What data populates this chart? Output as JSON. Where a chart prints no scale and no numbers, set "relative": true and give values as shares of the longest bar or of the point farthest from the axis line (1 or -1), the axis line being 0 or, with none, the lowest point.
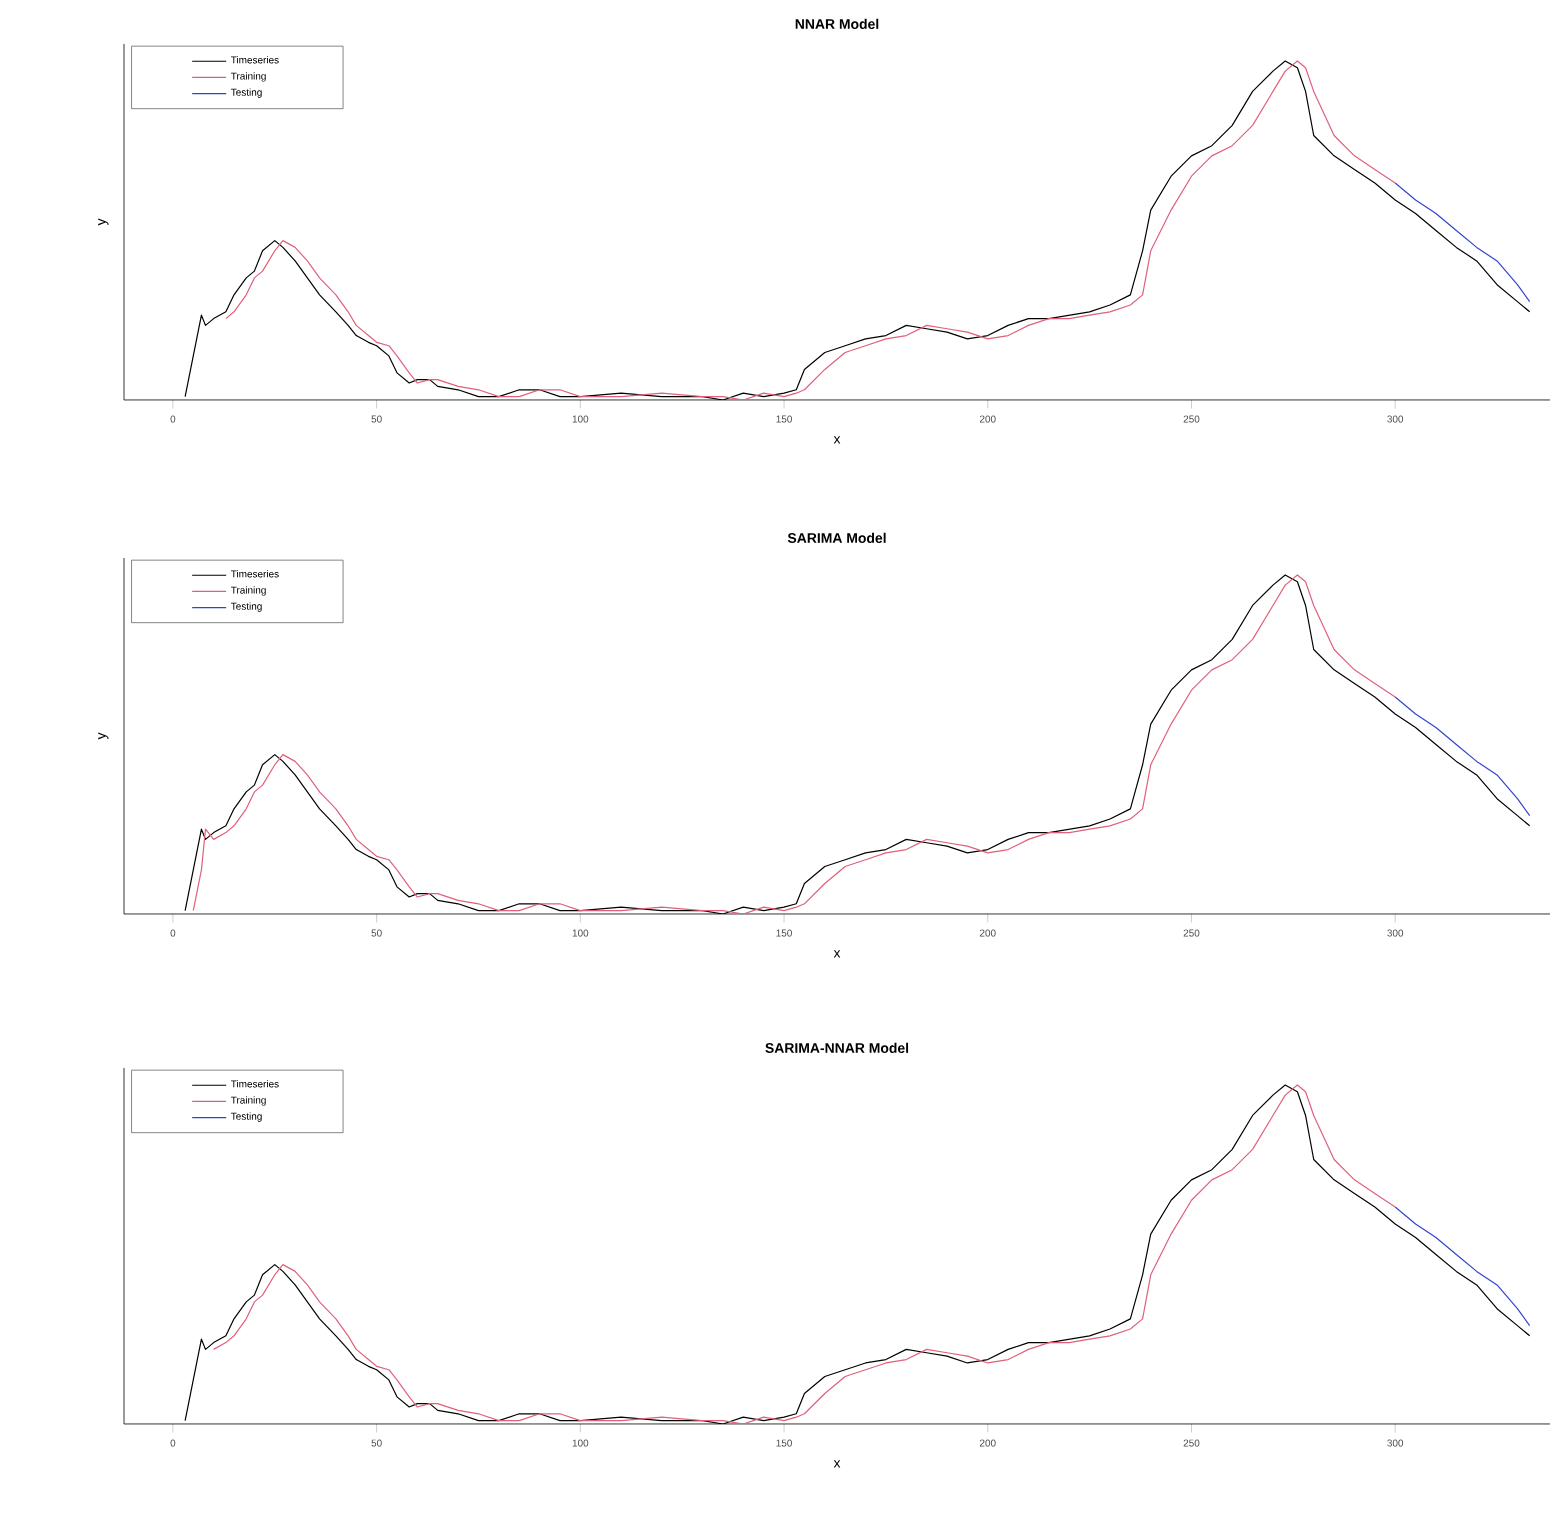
{
  "chart_data": [
    {
      "type": "line",
      "title": "NNAR Model",
      "xlabel": "x",
      "ylabel": "y",
      "relative": true,
      "xlim": [
        -12,
        338
      ],
      "xticks": [
        0,
        50,
        100,
        150,
        200,
        250,
        300
      ],
      "legend": "top left",
      "series": [
        {
          "name": "Timeseries",
          "color": "#000000",
          "x": [
            3,
            5,
            7,
            8,
            10,
            13,
            15,
            18,
            20,
            22,
            25,
            27,
            30,
            33,
            36,
            40,
            43,
            45,
            48,
            50,
            53,
            55,
            58,
            60,
            63,
            65,
            70,
            75,
            80,
            85,
            90,
            95,
            100,
            110,
            120,
            130,
            135,
            140,
            145,
            150,
            153,
            155,
            160,
            165,
            170,
            175,
            180,
            185,
            190,
            195,
            200,
            205,
            210,
            215,
            220,
            225,
            230,
            235,
            238,
            240,
            245,
            250,
            255,
            260,
            265,
            270,
            273,
            276,
            278,
            280,
            285,
            290,
            295,
            300,
            305,
            310,
            315,
            320,
            325,
            330,
            333
          ],
          "values": [
            0.01,
            0.13,
            0.25,
            0.22,
            0.24,
            0.26,
            0.31,
            0.36,
            0.38,
            0.44,
            0.47,
            0.45,
            0.41,
            0.36,
            0.31,
            0.26,
            0.22,
            0.19,
            0.17,
            0.16,
            0.13,
            0.08,
            0.05,
            0.06,
            0.06,
            0.04,
            0.03,
            0.01,
            0.01,
            0.03,
            0.03,
            0.01,
            0.01,
            0.02,
            0.01,
            0.01,
            0,
            0.02,
            0.01,
            0.02,
            0.03,
            0.09,
            0.14,
            0.16,
            0.18,
            0.19,
            0.22,
            0.21,
            0.2,
            0.18,
            0.19,
            0.22,
            0.24,
            0.24,
            0.25,
            0.26,
            0.28,
            0.31,
            0.44,
            0.56,
            0.66,
            0.72,
            0.75,
            0.81,
            0.91,
            0.97,
            1,
            0.98,
            0.91,
            0.78,
            0.72,
            0.68,
            0.64,
            0.59,
            0.55,
            0.5,
            0.45,
            0.41,
            0.34,
            0.29,
            0.26
          ]
        },
        {
          "name": "Training",
          "color": "#e0607a",
          "x": [
            13,
            15,
            18,
            20,
            22,
            25,
            27,
            30,
            33,
            36,
            40,
            43,
            45,
            48,
            50,
            53,
            55,
            58,
            60,
            63,
            65,
            70,
            75,
            80,
            85,
            90,
            95,
            100,
            110,
            120,
            130,
            135,
            140,
            145,
            150,
            153,
            155,
            160,
            165,
            170,
            175,
            180,
            185,
            190,
            195,
            200,
            205,
            210,
            215,
            220,
            225,
            230,
            235,
            238,
            240,
            245,
            250,
            255,
            260,
            265,
            270,
            273,
            276,
            278,
            280,
            285,
            290,
            295,
            300
          ],
          "values": [
            0.24,
            0.26,
            0.31,
            0.36,
            0.38,
            0.44,
            0.47,
            0.45,
            0.41,
            0.36,
            0.31,
            0.26,
            0.22,
            0.19,
            0.17,
            0.16,
            0.13,
            0.08,
            0.05,
            0.06,
            0.06,
            0.04,
            0.03,
            0.01,
            0.01,
            0.03,
            0.03,
            0.01,
            0.01,
            0.02,
            0.01,
            0.01,
            0,
            0.02,
            0.01,
            0.02,
            0.03,
            0.09,
            0.14,
            0.16,
            0.18,
            0.19,
            0.22,
            0.21,
            0.2,
            0.18,
            0.19,
            0.22,
            0.24,
            0.24,
            0.25,
            0.26,
            0.28,
            0.31,
            0.44,
            0.56,
            0.66,
            0.72,
            0.75,
            0.81,
            0.91,
            0.97,
            1,
            0.98,
            0.91,
            0.78,
            0.72,
            0.68,
            0.64
          ]
        },
        {
          "name": "Testing",
          "color": "#3344cc",
          "x": [
            300,
            305,
            310,
            315,
            320,
            325,
            330,
            333
          ],
          "values": [
            0.64,
            0.59,
            0.55,
            0.5,
            0.45,
            0.41,
            0.34,
            0.29
          ]
        }
      ]
    },
    {
      "type": "line",
      "title": "SARIMA Model",
      "xlabel": "x",
      "ylabel": "y",
      "relative": true,
      "xlim": [
        -12,
        338
      ],
      "xticks": [
        0,
        50,
        100,
        150,
        200,
        250,
        300
      ],
      "legend": "top left",
      "series": [
        {
          "name": "Timeseries",
          "color": "#000000",
          "x": [
            3,
            5,
            7,
            8,
            10,
            13,
            15,
            18,
            20,
            22,
            25,
            27,
            30,
            33,
            36,
            40,
            43,
            45,
            48,
            50,
            53,
            55,
            58,
            60,
            63,
            65,
            70,
            75,
            80,
            85,
            90,
            95,
            100,
            110,
            120,
            130,
            135,
            140,
            145,
            150,
            153,
            155,
            160,
            165,
            170,
            175,
            180,
            185,
            190,
            195,
            200,
            205,
            210,
            215,
            220,
            225,
            230,
            235,
            238,
            240,
            245,
            250,
            255,
            260,
            265,
            270,
            273,
            276,
            278,
            280,
            285,
            290,
            295,
            300,
            305,
            310,
            315,
            320,
            325,
            330,
            333
          ],
          "values": [
            0.01,
            0.13,
            0.25,
            0.22,
            0.24,
            0.26,
            0.31,
            0.36,
            0.38,
            0.44,
            0.47,
            0.45,
            0.41,
            0.36,
            0.31,
            0.26,
            0.22,
            0.19,
            0.17,
            0.16,
            0.13,
            0.08,
            0.05,
            0.06,
            0.06,
            0.04,
            0.03,
            0.01,
            0.01,
            0.03,
            0.03,
            0.01,
            0.01,
            0.02,
            0.01,
            0.01,
            0,
            0.02,
            0.01,
            0.02,
            0.03,
            0.09,
            0.14,
            0.16,
            0.18,
            0.19,
            0.22,
            0.21,
            0.2,
            0.18,
            0.19,
            0.22,
            0.24,
            0.24,
            0.25,
            0.26,
            0.28,
            0.31,
            0.44,
            0.56,
            0.66,
            0.72,
            0.75,
            0.81,
            0.91,
            0.97,
            1,
            0.98,
            0.91,
            0.78,
            0.72,
            0.68,
            0.64,
            0.59,
            0.55,
            0.5,
            0.45,
            0.41,
            0.34,
            0.29,
            0.26
          ]
        },
        {
          "name": "Training",
          "color": "#e0607a",
          "x": [
            5,
            7,
            8,
            10,
            13,
            15,
            18,
            20,
            22,
            25,
            27,
            30,
            33,
            36,
            40,
            43,
            45,
            48,
            50,
            53,
            55,
            58,
            60,
            63,
            65,
            70,
            75,
            80,
            85,
            90,
            95,
            100,
            110,
            120,
            130,
            135,
            140,
            145,
            150,
            153,
            155,
            160,
            165,
            170,
            175,
            180,
            185,
            190,
            195,
            200,
            205,
            210,
            215,
            220,
            225,
            230,
            235,
            238,
            240,
            245,
            250,
            255,
            260,
            265,
            270,
            273,
            276,
            278,
            280,
            285,
            290,
            295,
            300
          ],
          "values": [
            0.01,
            0.13,
            0.25,
            0.22,
            0.24,
            0.26,
            0.31,
            0.36,
            0.38,
            0.44,
            0.47,
            0.45,
            0.41,
            0.36,
            0.31,
            0.26,
            0.22,
            0.19,
            0.17,
            0.16,
            0.13,
            0.08,
            0.05,
            0.06,
            0.06,
            0.04,
            0.03,
            0.01,
            0.01,
            0.03,
            0.03,
            0.01,
            0.01,
            0.02,
            0.01,
            0.01,
            0,
            0.02,
            0.01,
            0.02,
            0.03,
            0.09,
            0.14,
            0.16,
            0.18,
            0.19,
            0.22,
            0.21,
            0.2,
            0.18,
            0.19,
            0.22,
            0.24,
            0.24,
            0.25,
            0.26,
            0.28,
            0.31,
            0.44,
            0.56,
            0.66,
            0.72,
            0.75,
            0.81,
            0.91,
            0.97,
            1,
            0.98,
            0.91,
            0.78,
            0.72,
            0.68,
            0.64
          ]
        },
        {
          "name": "Testing",
          "color": "#3344cc",
          "x": [
            300,
            305,
            310,
            315,
            320,
            325,
            330,
            333
          ],
          "values": [
            0.64,
            0.59,
            0.55,
            0.5,
            0.45,
            0.41,
            0.34,
            0.29
          ]
        }
      ]
    },
    {
      "type": "line",
      "title": "SARIMA-NNAR Model",
      "xlabel": "x",
      "relative": true,
      "xlim": [
        -12,
        338
      ],
      "xticks": [
        0,
        50,
        100,
        150,
        200,
        250,
        300
      ],
      "legend": "top left",
      "series": [
        {
          "name": "Timeseries",
          "color": "#000000",
          "x": [
            3,
            5,
            7,
            8,
            10,
            13,
            15,
            18,
            20,
            22,
            25,
            27,
            30,
            33,
            36,
            40,
            43,
            45,
            48,
            50,
            53,
            55,
            58,
            60,
            63,
            65,
            70,
            75,
            80,
            85,
            90,
            95,
            100,
            110,
            120,
            130,
            135,
            140,
            145,
            150,
            153,
            155,
            160,
            165,
            170,
            175,
            180,
            185,
            190,
            195,
            200,
            205,
            210,
            215,
            220,
            225,
            230,
            235,
            238,
            240,
            245,
            250,
            255,
            260,
            265,
            270,
            273,
            276,
            278,
            280,
            285,
            290,
            295,
            300,
            305,
            310,
            315,
            320,
            325,
            330,
            333
          ],
          "values": [
            0.01,
            0.13,
            0.25,
            0.22,
            0.24,
            0.26,
            0.31,
            0.36,
            0.38,
            0.44,
            0.47,
            0.45,
            0.41,
            0.36,
            0.31,
            0.26,
            0.22,
            0.19,
            0.17,
            0.16,
            0.13,
            0.08,
            0.05,
            0.06,
            0.06,
            0.04,
            0.03,
            0.01,
            0.01,
            0.03,
            0.03,
            0.01,
            0.01,
            0.02,
            0.01,
            0.01,
            0,
            0.02,
            0.01,
            0.02,
            0.03,
            0.09,
            0.14,
            0.16,
            0.18,
            0.19,
            0.22,
            0.21,
            0.2,
            0.18,
            0.19,
            0.22,
            0.24,
            0.24,
            0.25,
            0.26,
            0.28,
            0.31,
            0.44,
            0.56,
            0.66,
            0.72,
            0.75,
            0.81,
            0.91,
            0.97,
            1,
            0.98,
            0.91,
            0.78,
            0.72,
            0.68,
            0.64,
            0.59,
            0.55,
            0.5,
            0.45,
            0.41,
            0.34,
            0.29,
            0.26
          ]
        },
        {
          "name": "Training",
          "color": "#e0607a",
          "x": [
            10,
            13,
            15,
            18,
            20,
            22,
            25,
            27,
            30,
            33,
            36,
            40,
            43,
            45,
            48,
            50,
            53,
            55,
            58,
            60,
            63,
            65,
            70,
            75,
            80,
            85,
            90,
            95,
            100,
            110,
            120,
            130,
            135,
            140,
            145,
            150,
            153,
            155,
            160,
            165,
            170,
            175,
            180,
            185,
            190,
            195,
            200,
            205,
            210,
            215,
            220,
            225,
            230,
            235,
            238,
            240,
            245,
            250,
            255,
            260,
            265,
            270,
            273,
            276,
            278,
            280,
            285,
            290,
            295,
            300
          ],
          "values": [
            0.22,
            0.24,
            0.26,
            0.31,
            0.36,
            0.38,
            0.44,
            0.47,
            0.45,
            0.41,
            0.36,
            0.31,
            0.26,
            0.22,
            0.19,
            0.17,
            0.16,
            0.13,
            0.08,
            0.05,
            0.06,
            0.06,
            0.04,
            0.03,
            0.01,
            0.01,
            0.03,
            0.03,
            0.01,
            0.01,
            0.02,
            0.01,
            0.01,
            0,
            0.02,
            0.01,
            0.02,
            0.03,
            0.09,
            0.14,
            0.16,
            0.18,
            0.19,
            0.22,
            0.21,
            0.2,
            0.18,
            0.19,
            0.22,
            0.24,
            0.24,
            0.25,
            0.26,
            0.28,
            0.31,
            0.44,
            0.56,
            0.66,
            0.72,
            0.75,
            0.81,
            0.91,
            0.97,
            1,
            0.98,
            0.91,
            0.78,
            0.72,
            0.68,
            0.64
          ]
        },
        {
          "name": "Testing",
          "color": "#3344cc",
          "x": [
            300,
            305,
            310,
            315,
            320,
            325,
            330,
            333
          ],
          "values": [
            0.64,
            0.59,
            0.55,
            0.5,
            0.45,
            0.41,
            0.34,
            0.29
          ]
        }
      ]
    }
  ]
}
